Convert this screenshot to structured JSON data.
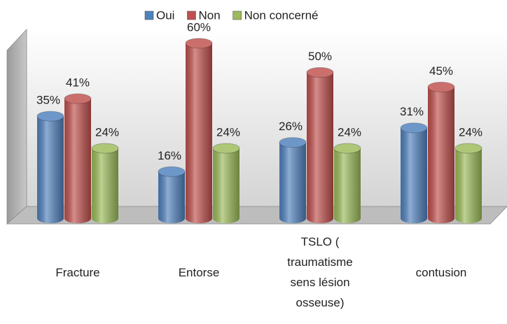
{
  "chart_data": {
    "type": "bar3d",
    "categories": [
      "Fracture",
      "Entorse",
      "TSLO ( traumatisme sens lésion osseuse)",
      "contusion"
    ],
    "series": [
      {
        "name": "Oui",
        "color": "#4f81bd",
        "values": [
          35,
          16,
          26,
          31
        ],
        "value_labels": [
          "35%",
          "16%",
          "26%",
          "31%"
        ]
      },
      {
        "name": "Non",
        "color": "#c0504d",
        "values": [
          41,
          60,
          50,
          45
        ],
        "value_labels": [
          "41%",
          "60%",
          "50%",
          "45%"
        ]
      },
      {
        "name": "Non concerné",
        "color": "#9bbb59",
        "values": [
          24,
          24,
          24,
          24
        ],
        "value_labels": [
          "24%",
          "24%",
          "24%",
          "24%"
        ]
      }
    ],
    "ylim": [
      0,
      65
    ],
    "legend": "top"
  }
}
